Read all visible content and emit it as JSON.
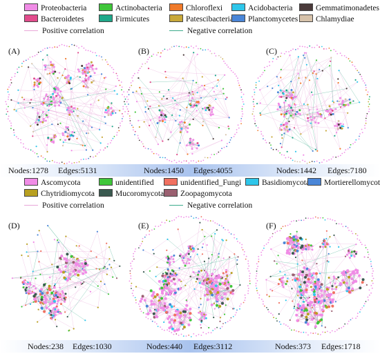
{
  "legend_top": {
    "items": [
      {
        "label": "Proteobacteria",
        "color": "#f08ce6"
      },
      {
        "label": "Actinobacteria",
        "color": "#3fc63a"
      },
      {
        "label": "Chloroflexi",
        "color": "#f07a2a"
      },
      {
        "label": "Acidobacteria",
        "color": "#2ec6ea"
      },
      {
        "label": "Gemmatimonadetes",
        "color": "#4a3a3a"
      },
      {
        "label": "Bacteroidetes",
        "color": "#e24c8c"
      },
      {
        "label": "Firmicutes",
        "color": "#1fa88a"
      },
      {
        "label": "Patescibacteria",
        "color": "#c8a83a"
      },
      {
        "label": "Planctomycetes",
        "color": "#4a86d8"
      },
      {
        "label": "Chlamydiae",
        "color": "#d6c2aa"
      }
    ],
    "positive_label": "Positive correlation",
    "negative_label": "Negative correlation"
  },
  "legend_bottom": {
    "items": [
      {
        "label": "Ascomycota",
        "color": "#f08ce6"
      },
      {
        "label": "unidentified",
        "color": "#3fc63a"
      },
      {
        "label": "unidentified_Fungi",
        "color": "#f07060"
      },
      {
        "label": "Basidiomycota",
        "color": "#2ec6ea"
      },
      {
        "label": "Mortierellomycota",
        "color": "#4a86d8"
      },
      {
        "label": "Chytridiomycota",
        "color": "#b8a020"
      },
      {
        "label": "Mucoromycota",
        "color": "#3a5a50"
      },
      {
        "label": "Zoopagomycota",
        "color": "#9a6070"
      }
    ],
    "positive_label": "Positive correlation",
    "negative_label": "Negative correlation"
  },
  "colors": {
    "positive": "#e8a6d8",
    "negative": "#3aaa8a"
  },
  "panels": [
    {
      "label": "(A)",
      "nodes": "Nodes:1278",
      "edges": "Edges:5131"
    },
    {
      "label": "(B)",
      "nodes": "Nodes:1450",
      "edges": "Edges:4055"
    },
    {
      "label": "(C)",
      "nodes": "Nodes:1442",
      "edges": "Edges:7180"
    },
    {
      "label": "(D)",
      "nodes": "Nodes:238",
      "edges": "Edges:1030"
    },
    {
      "label": "(E)",
      "nodes": "Nodes:440",
      "edges": "Edges:3112"
    },
    {
      "label": "(F)",
      "nodes": "Nodes:373",
      "edges": "Edges:1718"
    }
  ]
}
